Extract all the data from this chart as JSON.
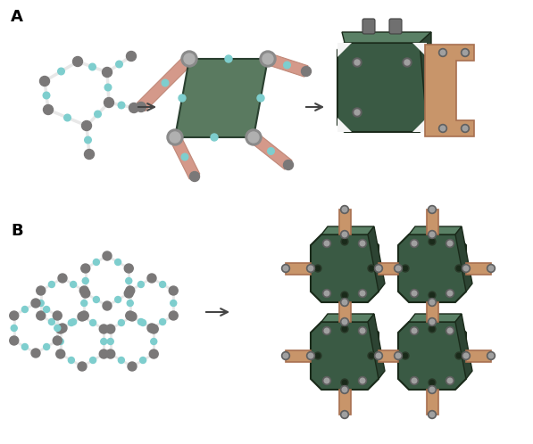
{
  "figure_size": [
    5.97,
    4.98
  ],
  "dpi": 100,
  "bg_color": "#ffffff",
  "label_A": "A",
  "label_B": "B",
  "label_fontsize": 13,
  "label_fontweight": "bold",
  "arrow_color": "#444444",
  "dark_green": "#4a7055",
  "dark_green2": "#3a5a44",
  "dark_green_side": "#2d4433",
  "dark_green_top": "#5a8065",
  "copper": "#c8956a",
  "copper_dark": "#a87050",
  "gray_node": "#7a7878",
  "gray_pin": "#888888",
  "cyan_node": "#7ecece",
  "white_bond": "#e8e8e8",
  "bond_lw": 2.0
}
